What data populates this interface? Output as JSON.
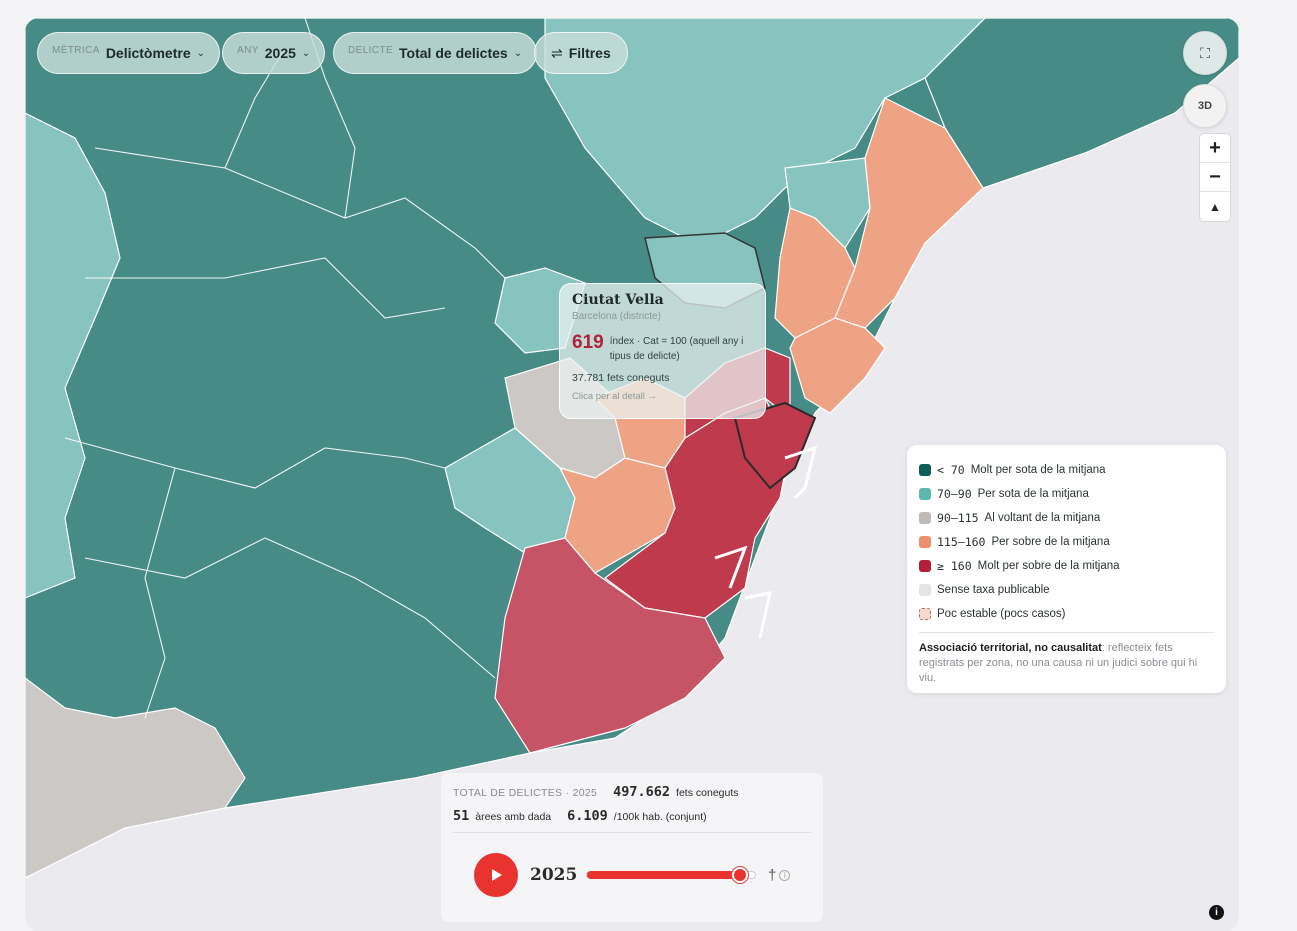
{
  "controls": {
    "metric": {
      "label": "MÈTRICA",
      "value": "Delictòmetre"
    },
    "year": {
      "label": "ANY",
      "value": "2025"
    },
    "crime": {
      "label": "DELICTE",
      "value": "Total de delictes"
    },
    "filters_label": "Filtres",
    "view_3d_label": "3D",
    "zoom_in": "+",
    "zoom_out": "−"
  },
  "tooltip": {
    "name": "Ciutat Vella",
    "subtitle": "Barcelona (districte)",
    "index_value": "619",
    "index_desc": "índex · Cat = 100 (aquell any i tipus de delicte)",
    "facts": "37.781 fets coneguts",
    "link": "Clica per al detall →"
  },
  "legend": {
    "items": [
      {
        "range": "< 70",
        "label": "Molt per sota de la mitjana",
        "color": "#0f5e57"
      },
      {
        "range": "70–90",
        "label": "Per sota de la mitjana",
        "color": "#5fb7ae"
      },
      {
        "range": "90–115",
        "label": "Al voltant de la mitjana",
        "color": "#bdbab7"
      },
      {
        "range": "115–160",
        "label": "Per sobre de la mitjana",
        "color": "#ee8f6b"
      },
      {
        "range": "≥ 160",
        "label": "Molt per sobre de la mitjana",
        "color": "#b3203a"
      }
    ],
    "no_rate": {
      "label": "Sense taxa publicable",
      "color": "#e4e4e4"
    },
    "unstable": {
      "label": "Poc estable (pocs casos)"
    },
    "note_bold": "Associació territorial, no causalitat",
    "note_rest": ": reflecteix fets registrats per zona, no una causa ni un judici sobre qui hi viu."
  },
  "stats": {
    "caption": "TOTAL DE DELICTES · 2025",
    "total": "497.662",
    "total_unit": "fets coneguts",
    "areas": "51",
    "areas_unit": "àrees amb dada",
    "rate": "6.109",
    "rate_unit": "/100k hab. (conjunt)"
  },
  "timeline": {
    "year": "2025",
    "progress": 0.9,
    "dagger": "†"
  },
  "map_colors": {
    "sea": "#ebeaee",
    "very_low": "#468b85",
    "low": "#88c4bf",
    "average": "#cbc8c5",
    "high": "#efa385",
    "very_high": "#c03a4e",
    "very_high_soft": "#c75466"
  }
}
